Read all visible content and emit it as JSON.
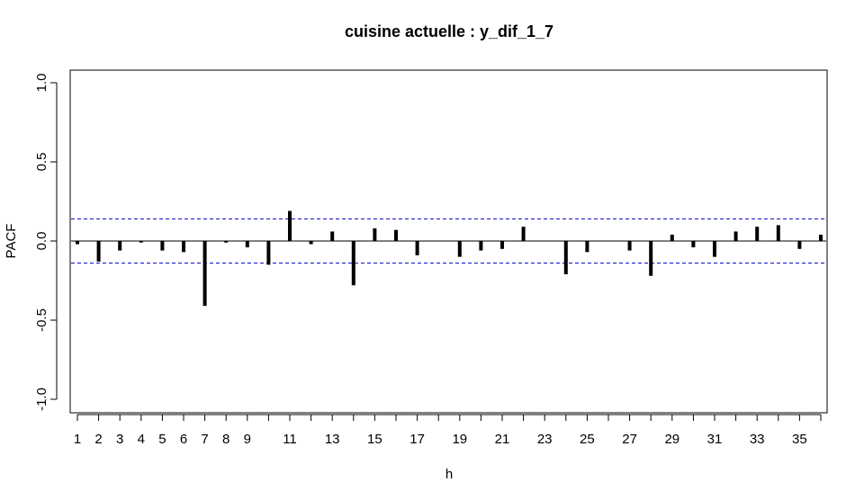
{
  "chart_data": {
    "type": "bar",
    "title": "cuisine actuelle : y_dif_1_7",
    "xlabel": "h",
    "ylabel": "PACF",
    "ylim": [
      -1.0,
      1.0
    ],
    "xlim": [
      1,
      36
    ],
    "yticks": [
      -1.0,
      -0.5,
      0.0,
      0.5,
      1.0
    ],
    "ytick_labels": [
      "-1.0",
      "-0.5",
      "0.0",
      "0.5",
      "1.0"
    ],
    "xticks": [
      1,
      2,
      3,
      4,
      5,
      6,
      7,
      8,
      9,
      10,
      11,
      12,
      13,
      14,
      15,
      16,
      17,
      18,
      19,
      20,
      21,
      22,
      23,
      24,
      25,
      26,
      27,
      28,
      29,
      30,
      31,
      32,
      33,
      34,
      35,
      36
    ],
    "xtick_labels": [
      "1",
      "2",
      "3",
      "4",
      "5",
      "6",
      "7",
      "8",
      "9",
      "",
      "11",
      "",
      "13",
      "",
      "15",
      "",
      "17",
      "",
      "19",
      "",
      "21",
      "",
      "23",
      "",
      "25",
      "",
      "27",
      "",
      "29",
      "",
      "31",
      "",
      "33",
      "",
      "35",
      ""
    ],
    "lags": [
      1,
      2,
      3,
      4,
      5,
      6,
      7,
      8,
      9,
      10,
      11,
      12,
      13,
      14,
      15,
      16,
      17,
      18,
      19,
      20,
      21,
      22,
      23,
      24,
      25,
      26,
      27,
      28,
      29,
      30,
      31,
      32,
      33,
      34,
      35,
      36
    ],
    "values": [
      -0.02,
      -0.13,
      -0.06,
      -0.01,
      -0.06,
      -0.07,
      -0.41,
      -0.01,
      -0.04,
      -0.15,
      0.19,
      -0.02,
      0.06,
      -0.28,
      0.08,
      0.07,
      -0.09,
      0.0,
      -0.1,
      -0.06,
      -0.05,
      0.09,
      0.0,
      -0.21,
      -0.07,
      0.0,
      -0.06,
      -0.22,
      0.04,
      -0.04,
      -0.1,
      0.06,
      0.09,
      0.1,
      -0.05,
      0.04
    ],
    "confidence_bound": 0.14,
    "grid": false,
    "colors": {
      "bars": "#000000",
      "bounds": "#0000cc",
      "zero_line": "#000000"
    }
  }
}
